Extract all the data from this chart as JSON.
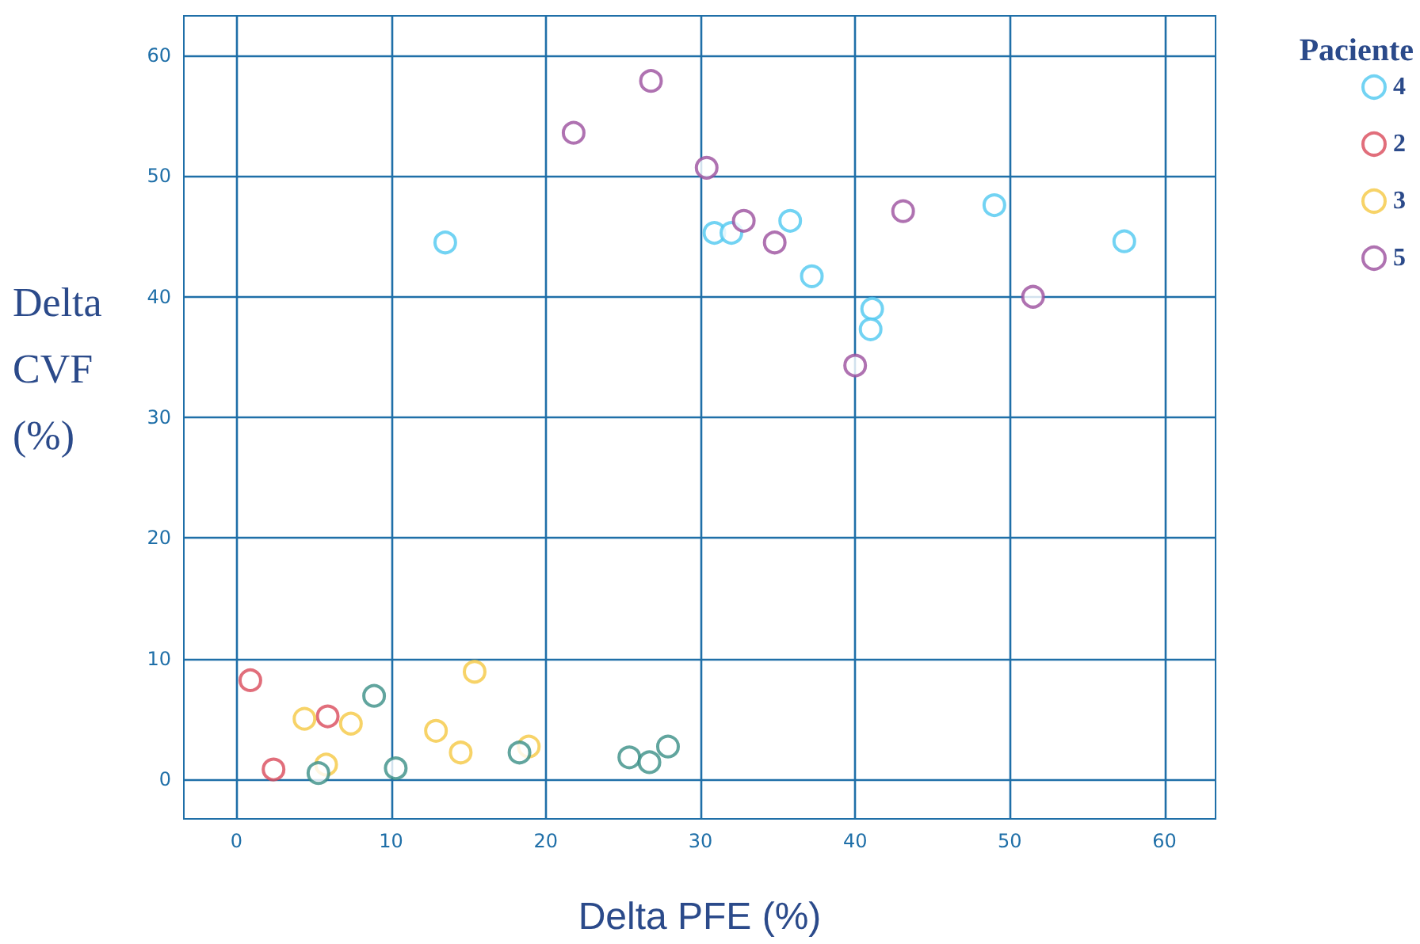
{
  "chart_data": {
    "type": "scatter",
    "xlabel": "Delta PFE (%)",
    "ylabel": "Delta\nCVF\n(%)",
    "legend_title": "Paciente",
    "legend": "right",
    "grid": true,
    "marker": "circle",
    "xlim": [
      -3.4,
      63.3
    ],
    "ylim": [
      -3.3,
      63.3
    ],
    "xticks": [
      0,
      10,
      20,
      30,
      40,
      50,
      60
    ],
    "yticks": [
      0,
      10,
      20,
      30,
      40,
      50,
      60
    ],
    "series": [
      {
        "name": "4",
        "color": "#4fc8f0",
        "x": [
          13.5,
          30.9,
          32.0,
          35.8,
          37.2,
          41.1,
          41.0,
          49.0,
          57.4
        ],
        "values": [
          44.5,
          45.3,
          45.3,
          46.3,
          41.7,
          39.0,
          37.3,
          47.6,
          44.6
        ]
      },
      {
        "name": "2",
        "color": "#d94a5a",
        "x": [
          0.9,
          2.4,
          5.9
        ],
        "values": [
          8.2,
          0.8,
          5.2
        ]
      },
      {
        "name": "3",
        "color": "#f5c842",
        "x": [
          4.4,
          5.8,
          7.4,
          12.9,
          14.5,
          15.4,
          18.9
        ],
        "values": [
          5.0,
          1.2,
          4.6,
          4.0,
          2.2,
          8.9,
          2.7
        ]
      },
      {
        "name": "5",
        "color": "#9b4f9e",
        "x": [
          21.8,
          26.8,
          30.4,
          32.8,
          34.8,
          43.1,
          40.0,
          51.5
        ],
        "values": [
          53.6,
          57.9,
          50.7,
          46.3,
          44.5,
          47.1,
          34.3,
          40.0
        ]
      },
      {
        "color": "#3a8f86",
        "x": [
          5.3,
          8.9,
          10.3,
          18.3,
          25.4,
          26.7,
          27.9
        ],
        "values": [
          0.5,
          6.9,
          0.9,
          2.2,
          1.8,
          1.4,
          2.7
        ]
      }
    ]
  }
}
